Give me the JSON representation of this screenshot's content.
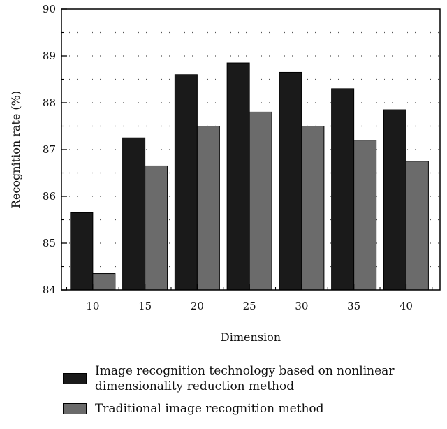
{
  "chart_data": {
    "type": "bar",
    "categories": [
      "10",
      "15",
      "20",
      "25",
      "30",
      "35",
      "40"
    ],
    "series": [
      {
        "name": "Image recognition technology based on nonlinear dimensionality reduction method",
        "color": "#1a1a1a",
        "values": [
          85.65,
          87.25,
          88.6,
          88.85,
          88.65,
          88.3,
          87.85
        ]
      },
      {
        "name": "Traditional image recognition method",
        "color": "#6b6b6b",
        "values": [
          84.35,
          86.65,
          87.5,
          87.8,
          87.5,
          87.2,
          86.75
        ]
      }
    ],
    "xlabel": "Dimension",
    "ylabel": "Recognition rate (%)",
    "ylim": [
      84,
      90
    ],
    "yticks": [
      "84",
      "85",
      "86",
      "87",
      "88",
      "89",
      "90"
    ],
    "grid": true,
    "legend": "bottom"
  }
}
